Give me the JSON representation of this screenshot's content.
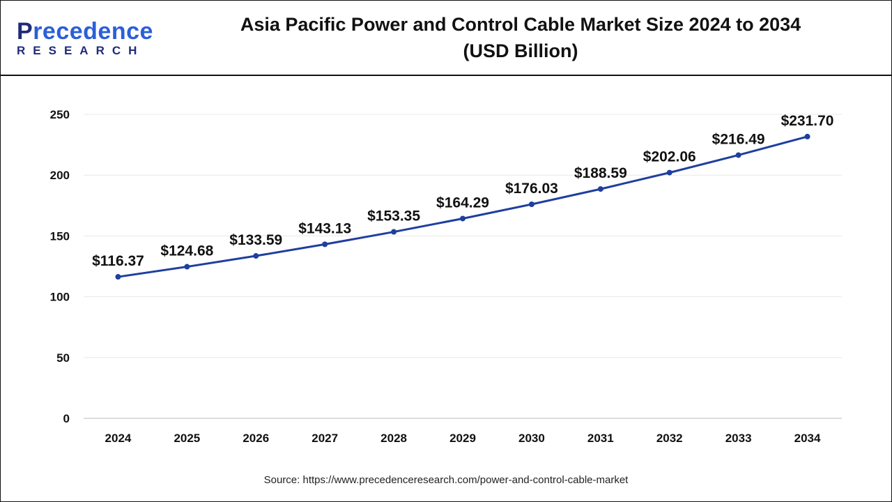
{
  "logo": {
    "main_first": "P",
    "main_rest": "recedence",
    "sub": "RESEARCH"
  },
  "title_line1": "Asia Pacific Power and Control Cable Market Size 2024 to 2034",
  "title_line2": "(USD Billion)",
  "source": "Source: https://www.precedenceresearch.com/power-and-control-cable-market",
  "colors": {
    "line": "#1f3f9e",
    "marker": "#1f3f9e",
    "grid": "#e8e8e8"
  },
  "chart_data": {
    "type": "line",
    "categories": [
      "2024",
      "2025",
      "2026",
      "2027",
      "2028",
      "2029",
      "2030",
      "2031",
      "2032",
      "2033",
      "2034"
    ],
    "values": [
      116.37,
      124.68,
      133.59,
      143.13,
      153.35,
      164.29,
      176.03,
      188.59,
      202.06,
      216.49,
      231.7
    ],
    "data_labels": [
      "$116.37",
      "$124.68",
      "$133.59",
      "$143.13",
      "$153.35",
      "$164.29",
      "$176.03",
      "$188.59",
      "$202.06",
      "$216.49",
      "$231.70"
    ],
    "yticks": [
      0,
      50,
      100,
      150,
      200,
      250
    ],
    "ylim": [
      0,
      250
    ],
    "grid": true,
    "xlabel": "",
    "ylabel": ""
  }
}
